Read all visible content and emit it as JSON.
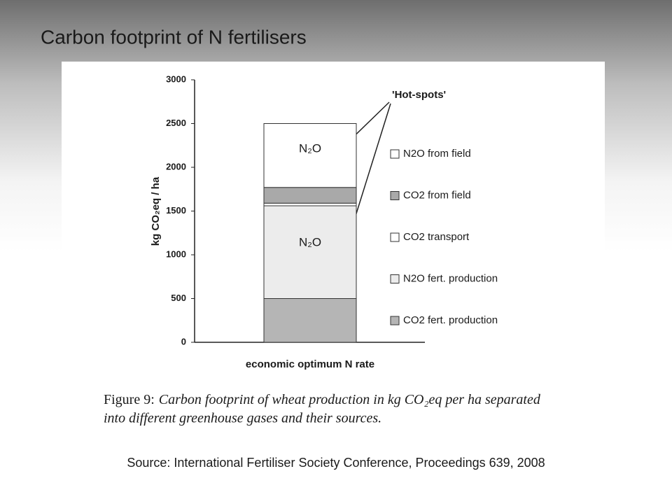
{
  "slide": {
    "title": "Carbon footprint of N fertilisers",
    "source": "Source: International Fertiliser Society Conference, Proceedings 639, 2008"
  },
  "chart_data": {
    "type": "stacked-bar",
    "y_label": "kg CO₂eq / ha",
    "categories": [
      "economic optimum N rate"
    ],
    "series": [
      {
        "name": "CO2 fert. production",
        "color": "#b5b5b5",
        "values": [
          500
        ]
      },
      {
        "name": "N2O fert. production",
        "color": "#ececec",
        "values": [
          1060
        ],
        "segment_label": "N₂O"
      },
      {
        "name": "CO2 transport",
        "color": "#ffffff",
        "values": [
          30
        ]
      },
      {
        "name": "CO2 from field",
        "color": "#a9a9a9",
        "values": [
          180
        ]
      },
      {
        "name": "N2O from field",
        "color": "#ffffff",
        "values": [
          730
        ],
        "segment_label": "N₂O"
      }
    ],
    "ylim": [
      0,
      3000
    ],
    "yticks": [
      0,
      500,
      1000,
      1500,
      2000,
      2500,
      3000
    ],
    "annotation": "'Hot-spots'",
    "caption_label": "Figure 9:",
    "caption_line1": "Carbon footprint of wheat production in kg CO₂eq per ha separated",
    "caption_line2": "into different greenhouse gases and their sources."
  }
}
